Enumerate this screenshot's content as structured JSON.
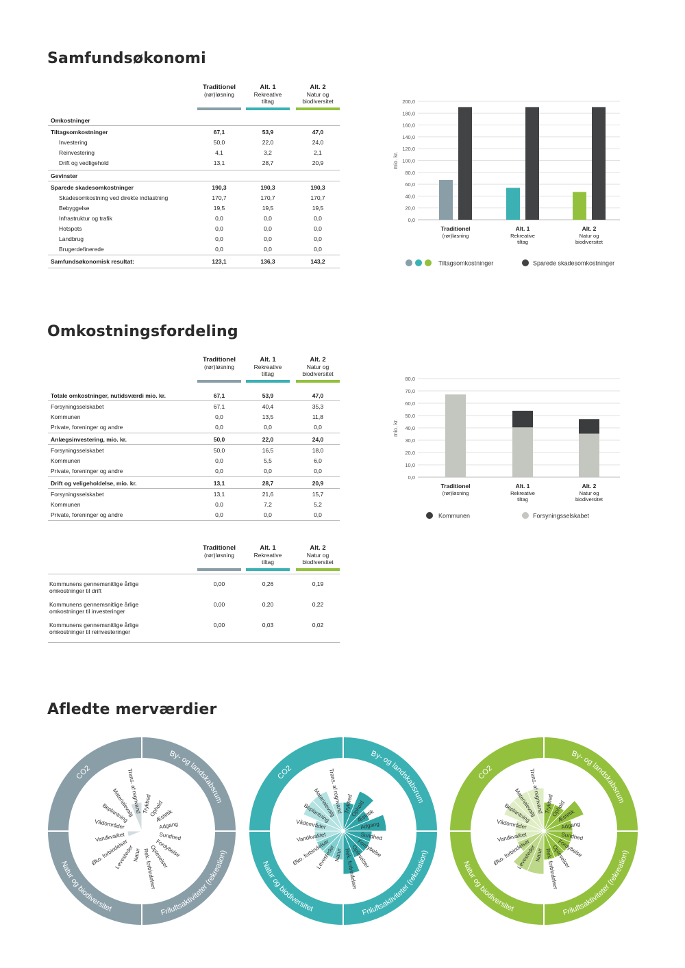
{
  "headings": {
    "samfund": "Samfundsøkonomi",
    "fordeling": "Omkostningsfordeling",
    "merv": "Afledte merværdier"
  },
  "alternatives": [
    {
      "line1": "Traditionel",
      "line2": "(rør)løsning",
      "line3": "",
      "color": "#8a9ea8"
    },
    {
      "line1": "Alt. 1",
      "line2": "Rekreative",
      "line3": "tiltag",
      "color": "#3bb1b4"
    },
    {
      "line1": "Alt. 2",
      "line2": "Natur og",
      "line3": "biodiversitet",
      "color": "#93c13e"
    }
  ],
  "table1": {
    "sections": [
      {
        "title": "Omkostninger",
        "rows": [
          {
            "label": "Tiltagsomkostninger",
            "bold": true,
            "values": [
              "67,1",
              "53,9",
              "47,0"
            ]
          },
          {
            "label": "Investering",
            "indent": true,
            "values": [
              "50,0",
              "22,0",
              "24,0"
            ]
          },
          {
            "label": "Reinvestering",
            "indent": true,
            "values": [
              "4,1",
              "3,2",
              "2,1"
            ]
          },
          {
            "label": "Drift og vedligehold",
            "indent": true,
            "values": [
              "13,1",
              "28,7",
              "20,9"
            ]
          }
        ]
      },
      {
        "title": "Gevinster",
        "rows": [
          {
            "label": "Sparede skadesomkostninger",
            "bold": true,
            "values": [
              "190,3",
              "190,3",
              "190,3"
            ]
          },
          {
            "label": "Skadesomkostning ved direkte indtastning",
            "indent": true,
            "values": [
              "170,7",
              "170,7",
              "170,7"
            ]
          },
          {
            "label": "Bebyggelse",
            "indent": true,
            "values": [
              "19,5",
              "19,5",
              "19,5"
            ]
          },
          {
            "label": "Infrastruktur og trafik",
            "indent": true,
            "values": [
              "0,0",
              "0,0",
              "0,0"
            ]
          },
          {
            "label": "Hotspots",
            "indent": true,
            "values": [
              "0,0",
              "0,0",
              "0,0"
            ]
          },
          {
            "label": "Landbrug",
            "indent": true,
            "values": [
              "0,0",
              "0,0",
              "0,0"
            ]
          },
          {
            "label": "Brugerdefinerede",
            "indent": true,
            "values": [
              "0,0",
              "0,0",
              "0,0"
            ]
          }
        ]
      }
    ],
    "result": {
      "label": "Samfundsøkonomisk resultat:",
      "values": [
        "123,1",
        "136,3",
        "143,2"
      ]
    }
  },
  "table2": {
    "groups": [
      {
        "title": "Totale omkostninger, nutidsværdi mio. kr.",
        "values": [
          "67,1",
          "53,9",
          "47,0"
        ],
        "rows": [
          {
            "label": "Forsyningsselskabet",
            "values": [
              "67,1",
              "40,4",
              "35,3"
            ]
          },
          {
            "label": "Kommunen",
            "values": [
              "0,0",
              "13,5",
              "11,8"
            ]
          },
          {
            "label": "Private, foreninger og andre",
            "values": [
              "0,0",
              "0,0",
              "0,0"
            ]
          }
        ]
      },
      {
        "title": "Anlægsinvestering, mio. kr.",
        "values": [
          "50,0",
          "22,0",
          "24,0"
        ],
        "rows": [
          {
            "label": "Forsyningsselskabet",
            "values": [
              "50,0",
              "16,5",
              "18,0"
            ]
          },
          {
            "label": "Kommunen",
            "values": [
              "0,0",
              "5,5",
              "6,0"
            ]
          },
          {
            "label": "Private, foreninger og andre",
            "values": [
              "0,0",
              "0,0",
              "0,0"
            ]
          }
        ]
      },
      {
        "title": "Drift og veligeholdelse, mio. kr.",
        "values": [
          "13,1",
          "28,7",
          "20,9"
        ],
        "rows": [
          {
            "label": "Forsyningsselskabet",
            "values": [
              "13,1",
              "21,6",
              "15,7"
            ]
          },
          {
            "label": "Kommunen",
            "values": [
              "0,0",
              "7,2",
              "5,2"
            ]
          },
          {
            "label": "Private, foreninger og andre",
            "values": [
              "0,0",
              "0,0",
              "0,0"
            ]
          }
        ]
      }
    ]
  },
  "table3": {
    "rows": [
      {
        "label1": "Kommunens gennemsnitlige årlige",
        "label2": "omkostninger til drift",
        "values": [
          "0,00",
          "0,26",
          "0,19"
        ]
      },
      {
        "label1": "Kommunens gennemsnitlige årlige",
        "label2": "omkostninger til investeringer",
        "values": [
          "0,00",
          "0,20",
          "0,22"
        ]
      },
      {
        "label1": "Kommunens gennemsnitlige årlige",
        "label2": "omkostninger til reinvesteringer",
        "values": [
          "0,00",
          "0,03",
          "0,02"
        ]
      }
    ]
  },
  "chart_data": [
    {
      "type": "bar",
      "ylabel": "mio. kr.",
      "ylim": [
        0,
        200
      ],
      "yticks": [
        "0,0",
        "20,0",
        "40,0",
        "60,0",
        "80,0",
        "100,0",
        "120,0",
        "140,0",
        "160,0",
        "180,0",
        "200,0"
      ],
      "categories": [
        {
          "line1": "Traditionel",
          "line2": "(rør)løsning",
          "line3": ""
        },
        {
          "line1": "Alt. 1",
          "line2": "Rekreative",
          "line3": "tiltag"
        },
        {
          "line1": "Alt. 2",
          "line2": "Natur og",
          "line3": "biodiversitet"
        }
      ],
      "series": [
        {
          "name": "Tiltagsomkostninger",
          "values": [
            67.1,
            53.9,
            47.0
          ],
          "colors": [
            "#8a9ea8",
            "#3bb1b4",
            "#93c13e"
          ]
        },
        {
          "name": "Sparede skadesomkostninger",
          "values": [
            190.3,
            190.3,
            190.3
          ],
          "color": "#414345"
        }
      ],
      "grid": true,
      "legend": "bottom"
    },
    {
      "type": "bar",
      "stacked": true,
      "ylabel": "mio. kr.",
      "ylim": [
        0,
        80
      ],
      "yticks": [
        "0,0",
        "10,0",
        "20,0",
        "30,0",
        "40,0",
        "50,0",
        "60,0",
        "70,0",
        "80,0"
      ],
      "categories": [
        {
          "line1": "Traditionel",
          "line2": "(rør)løsning",
          "line3": ""
        },
        {
          "line1": "Alt. 1",
          "line2": "Rekreative",
          "line3": "tiltag"
        },
        {
          "line1": "Alt. 2",
          "line2": "Natur og",
          "line3": "biodiversitet"
        }
      ],
      "series": [
        {
          "name": "Forsyningsselskabet",
          "values": [
            67.1,
            40.4,
            35.3
          ],
          "color": "#c4c6c0"
        },
        {
          "name": "Kommunen",
          "values": [
            0.0,
            13.5,
            11.8
          ],
          "color": "#3b3c3e"
        }
      ],
      "legend_order": [
        "Kommunen",
        "Forsyningsselskabet"
      ],
      "grid": true,
      "legend": "bottom"
    },
    {
      "type": "polar-area",
      "ring_labels": [
        "By- og landskabsrum",
        "Friluftsaktiviteter (rekreation)",
        "Natur og biodiversitet",
        "CO2"
      ],
      "categories": [
        "Trykhed",
        "Ophold",
        "Æstetik",
        "Adgang",
        "Sundhed",
        "Fordybelse",
        "Oplevelser",
        "Rek. forbindelser",
        "Natur",
        "Levesteder",
        "Øko. forbindelser",
        "Vandkvalitet",
        "Vådområder",
        "Beplantning",
        "Materialevalg",
        "Trans. af regnvand"
      ],
      "series": [
        {
          "name": "Traditionel",
          "ring_color": "#8a9ea8",
          "fill": "#d3dde0",
          "values": [
            0,
            0,
            0,
            0,
            0,
            0,
            0,
            0,
            0,
            0,
            0,
            1,
            0,
            0,
            0,
            2
          ]
        },
        {
          "name": "Alt. 1",
          "ring_color": "#3bb1b4",
          "fills": [
            "#2fa5a8",
            "#2fa5a8",
            "#2fa5a8",
            "#2fa5a8",
            "#2fa5a8",
            "#2fa5a8",
            "#2fa5a8",
            "#2fa5a8",
            "#7fcfd0",
            "#7fcfd0",
            "#7fcfd0",
            "#b3e2e2",
            "#b3e2e2",
            "#b3e2e2",
            "#b3e2e2",
            "#b3e2e2"
          ],
          "values": [
            2,
            3,
            2,
            3,
            2,
            2,
            2,
            3,
            2,
            2,
            2,
            2,
            2,
            3,
            3,
            2
          ]
        },
        {
          "name": "Alt. 2",
          "ring_color": "#93c13e",
          "fills": [
            "#93c13e",
            "#93c13e",
            "#93c13e",
            "#93c13e",
            "#93c13e",
            "#93c13e",
            "#93c13e",
            "#93c13e",
            "#bcd888",
            "#bcd888",
            "#bcd888",
            "#dfedc4",
            "#dfedc4",
            "#dfedc4",
            "#dfedc4",
            "#dfedc4"
          ],
          "values": [
            2,
            2,
            3,
            2,
            2,
            2,
            2,
            2,
            3,
            3,
            2,
            2,
            2,
            3,
            3,
            3
          ]
        }
      ]
    }
  ]
}
